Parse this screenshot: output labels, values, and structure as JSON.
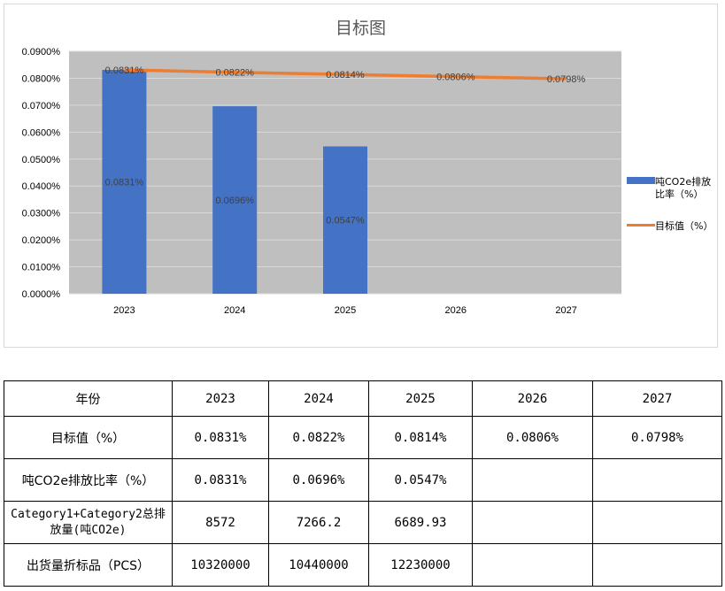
{
  "chart_data": {
    "type": "bar+line",
    "title": "目标图",
    "categories": [
      "2023",
      "2024",
      "2025",
      "2026",
      "2027"
    ],
    "series": [
      {
        "name": "吨CO2e排放比率（%）",
        "type": "bar",
        "color": "#4472c4",
        "values": [
          0.0831,
          0.0696,
          0.0547,
          null,
          null
        ],
        "labels": [
          "0.0831%",
          "0.0696%",
          "0.0547%",
          "",
          ""
        ]
      },
      {
        "name": "目标值（%）",
        "type": "line",
        "color": "#ed7d31",
        "values": [
          0.0831,
          0.0822,
          0.0814,
          0.0806,
          0.0798
        ],
        "labels": [
          "0.0831%",
          "0.0822%",
          "0.0814%",
          "0.0806%",
          "0.0798%"
        ]
      }
    ],
    "ylim": [
      0,
      0.09
    ],
    "yticks": [
      "0.0000%",
      "0.0100%",
      "0.0200%",
      "0.0300%",
      "0.0400%",
      "0.0500%",
      "0.0600%",
      "0.0700%",
      "0.0800%",
      "0.0900%"
    ],
    "grid": true,
    "legend_position": "right",
    "plot_background": "#bfbfbf"
  },
  "table": {
    "header": [
      "年份",
      "2023",
      "2024",
      "2025",
      "2026",
      "2027"
    ],
    "rows": [
      [
        "目标值（%）",
        "0.0831%",
        "0.0822%",
        "0.0814%",
        "0.0806%",
        "0.0798%"
      ],
      [
        "吨CO2e排放比率（%）",
        "0.0831%",
        "0.0696%",
        "0.0547%",
        "",
        ""
      ],
      [
        "Category1+Category2总排放量(吨CO2e)",
        "8572",
        "7266.2",
        "6689.93",
        "",
        ""
      ],
      [
        "出货量折标品（PCS）",
        "10320000",
        "10440000",
        "12230000",
        "",
        ""
      ]
    ]
  }
}
